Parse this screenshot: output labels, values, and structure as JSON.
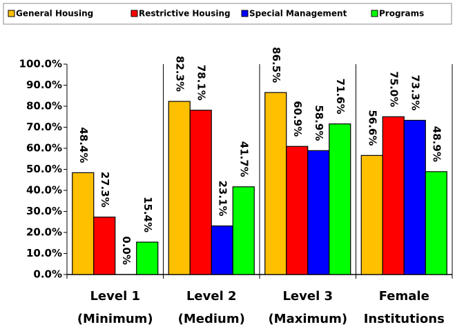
{
  "chart_data": {
    "type": "bar",
    "categories": [
      "Level 1\n(Minimum)",
      "Level 2\n(Medium)",
      "Level 3\n(Maximum)",
      "Female\nInstitutions"
    ],
    "series": [
      {
        "name": "General Housing",
        "color": "#FFC000",
        "values": [
          48.4,
          82.3,
          86.5,
          56.6
        ],
        "value_labels": [
          "48.4%",
          "82.3%",
          "86.5%",
          "56.6%"
        ]
      },
      {
        "name": "Restrictive Housing",
        "color": "#FF0000",
        "values": [
          27.3,
          78.1,
          60.9,
          75.0
        ],
        "value_labels": [
          "27.3%",
          "78.1%",
          "60.9%",
          "75.0%"
        ]
      },
      {
        "name": "Special Management",
        "color": "#0000FF",
        "values": [
          0.0,
          23.1,
          58.9,
          73.3
        ],
        "value_labels": [
          "0.0%",
          "23.1%",
          "58.9%",
          "73.3%"
        ]
      },
      {
        "name": "Programs",
        "color": "#00FF00",
        "values": [
          15.4,
          41.7,
          71.6,
          48.9
        ],
        "value_labels": [
          "15.4%",
          "41.7%",
          "71.6%",
          "48.9%"
        ]
      }
    ],
    "ylim": [
      0,
      100
    ],
    "yticks": [
      {
        "value": 0,
        "label": "0.0%"
      },
      {
        "value": 10,
        "label": "10.0%"
      },
      {
        "value": 20,
        "label": "20.0%"
      },
      {
        "value": 30,
        "label": "30.0%"
      },
      {
        "value": 40,
        "label": "40.0%"
      },
      {
        "value": 50,
        "label": "50.0%"
      },
      {
        "value": 60,
        "label": "60.0%"
      },
      {
        "value": 70,
        "label": "70.0%"
      },
      {
        "value": 80,
        "label": "80.0%"
      },
      {
        "value": 90,
        "label": "90.0%"
      },
      {
        "value": 100,
        "label": "100.0%"
      }
    ],
    "grid": false,
    "legend": "top"
  }
}
